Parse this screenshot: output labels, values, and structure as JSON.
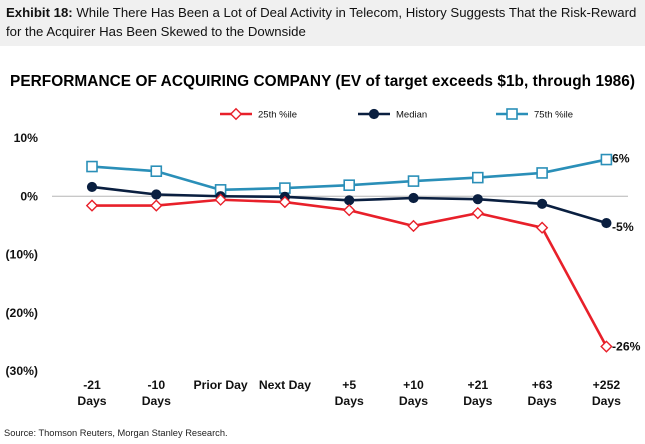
{
  "header": {
    "exhibit_label": "Exhibit 18:",
    "exhibit_text": "While There Has Been a Lot of Deal Activity in Telecom, History Suggests That the Risk-Reward for the Acquirer Has Been Skewed to the Downside"
  },
  "source": "Source: Thomson Reuters, Morgan Stanley Research.",
  "colors": {
    "p25": "#e8202a",
    "median": "#0a1f40",
    "p75": "#2a8fb8"
  },
  "chart_data": {
    "type": "line",
    "title": "PERFORMANCE OF ACQUIRING COMPANY (EV of target exceeds $1b, through 1986)",
    "xlabel": "",
    "ylabel": "",
    "categories": [
      [
        "-21",
        "Days"
      ],
      [
        "-10",
        "Days"
      ],
      [
        "Prior Day"
      ],
      [
        "Next Day"
      ],
      [
        "+5",
        "Days"
      ],
      [
        "+10",
        "Days"
      ],
      [
        "+21",
        "Days"
      ],
      [
        "+63",
        "Days"
      ],
      [
        "+252",
        "Days"
      ]
    ],
    "ylim": [
      -30,
      10
    ],
    "yticks": [
      10,
      0,
      -10,
      -20,
      -30
    ],
    "ytick_labels": [
      "10%",
      "0%",
      "(10%)",
      "(20%)",
      "(30%)"
    ],
    "legend_position": "top",
    "series": [
      {
        "name": "25th %ile",
        "color_key": "p25",
        "marker": "diamond",
        "values": [
          -1.6,
          -1.6,
          -0.6,
          -1.0,
          -2.4,
          -5.1,
          -2.9,
          -5.4,
          -25.8
        ],
        "end_label": "-26%"
      },
      {
        "name": "Median",
        "color_key": "median",
        "marker": "circle",
        "values": [
          1.6,
          0.3,
          0.0,
          -0.1,
          -0.7,
          -0.3,
          -0.5,
          -1.3,
          -4.6
        ],
        "end_label": "-5%"
      },
      {
        "name": "75th %ile",
        "color_key": "p75",
        "marker": "square",
        "values": [
          5.1,
          4.3,
          1.1,
          1.4,
          1.9,
          2.6,
          3.2,
          4.0,
          6.3
        ],
        "end_label": "6%"
      }
    ]
  }
}
